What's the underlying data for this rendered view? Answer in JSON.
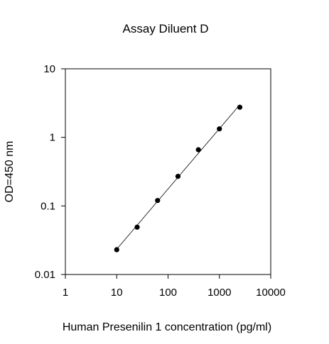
{
  "chart_data": {
    "type": "scatter",
    "title": "Assay Diluent D",
    "xlabel": "Human Presenilin 1 concentration (pg/ml)",
    "ylabel": "OD=450 nm",
    "x_scale": "log",
    "y_scale": "log",
    "xlim": [
      1,
      10000
    ],
    "ylim": [
      0.01,
      10
    ],
    "xticks": [
      1,
      10,
      100,
      1000,
      10000
    ],
    "xtick_labels": [
      "1",
      "10",
      "100",
      "1000",
      "10000"
    ],
    "yticks": [
      0.01,
      0.1,
      1,
      10
    ],
    "ytick_labels": [
      "0.01",
      "0.1",
      "1",
      "10"
    ],
    "grid": false,
    "series": [
      {
        "x": [
          10,
          25,
          62.5,
          156,
          390,
          1000,
          2500
        ],
        "y": [
          0.023,
          0.049,
          0.12,
          0.27,
          0.66,
          1.33,
          2.75
        ],
        "marker": "circle",
        "fit_line": true,
        "color": "#000000"
      }
    ]
  }
}
